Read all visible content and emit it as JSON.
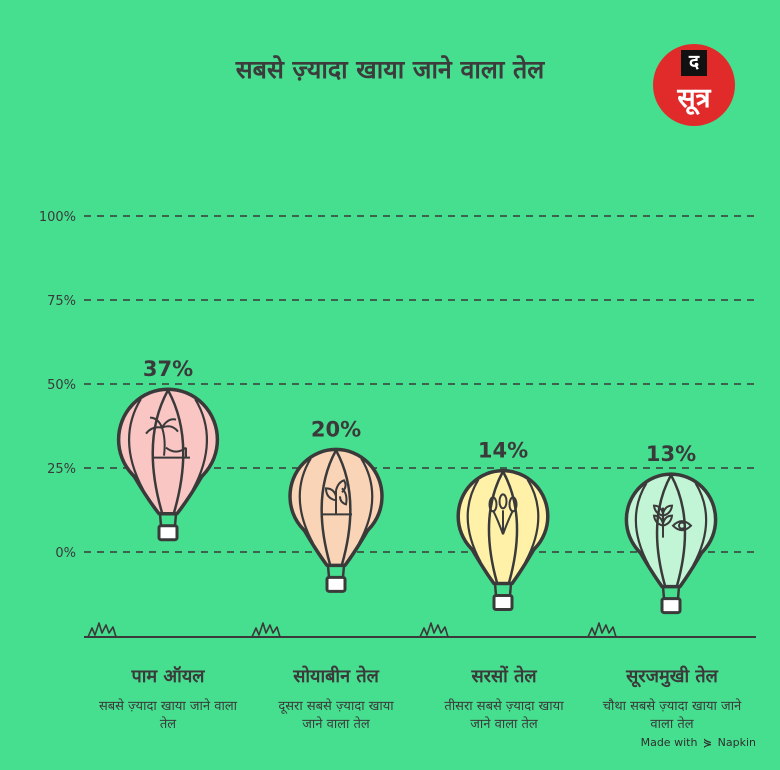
{
  "title": "सबसे ज़्यादा खाया जाने वाला तेल",
  "logo": {
    "top": "द",
    "bottom": "सूत्र"
  },
  "credit": {
    "made_with": "Made with",
    "brand": "Napkin",
    "icon": "napkin-icon"
  },
  "chart_data": {
    "type": "bar",
    "title": "सबसे ज़्यादा खाया जाने वाला तेल",
    "y_ticks": [
      "100%",
      "75%",
      "50%",
      "25%",
      "0%"
    ],
    "ylim": [
      0,
      100
    ],
    "grid": true,
    "categories": [
      "पाम ऑयल",
      "सोयाबीन तेल",
      "सरसों तेल",
      "सूरजमुखी तेल"
    ],
    "values": [
      37,
      20,
      14,
      13
    ],
    "value_labels": [
      "37%",
      "20%",
      "14%",
      "13%"
    ],
    "descriptions": [
      "सबसे ज़्यादा खाया जाने वाला तेल",
      "दूसरा सबसे ज़्यादा खाया जाने वाला तेल",
      "तीसरा सबसे ज़्यादा खाया जाने वाला तेल",
      "चौथा सबसे ज़्यादा खाया जाने वाला तेल"
    ],
    "colors": [
      "#f9c6c4",
      "#f9d4b6",
      "#fff2a8",
      "#c2f5d5"
    ],
    "icons": [
      "palm-tree-icon",
      "soybean-plant-icon",
      "mustard-plant-icon",
      "sunflower-eye-icon"
    ]
  }
}
